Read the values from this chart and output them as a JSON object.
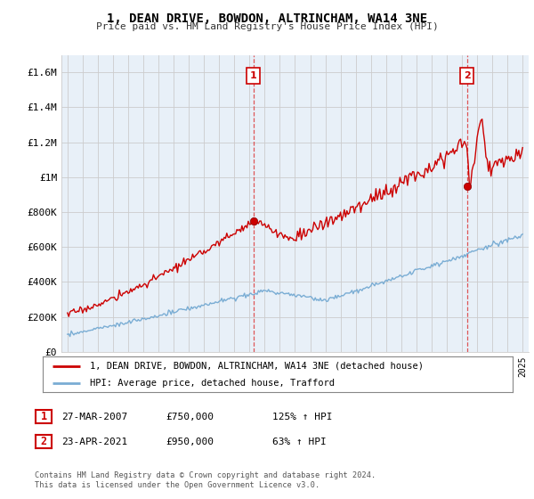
{
  "title": "1, DEAN DRIVE, BOWDON, ALTRINCHAM, WA14 3NE",
  "subtitle": "Price paid vs. HM Land Registry's House Price Index (HPI)",
  "legend_line1": "1, DEAN DRIVE, BOWDON, ALTRINCHAM, WA14 3NE (detached house)",
  "legend_line2": "HPI: Average price, detached house, Trafford",
  "sale1_date": "27-MAR-2007",
  "sale1_price": "£750,000",
  "sale1_hpi": "125% ↑ HPI",
  "sale2_date": "23-APR-2021",
  "sale2_price": "£950,000",
  "sale2_hpi": "63% ↑ HPI",
  "footer": "Contains HM Land Registry data © Crown copyright and database right 2024.\nThis data is licensed under the Open Government Licence v3.0.",
  "red_color": "#cc0000",
  "blue_color": "#7aadd4",
  "vline_color": "#dd4444",
  "grid_color": "#cccccc",
  "background_color": "#ffffff",
  "chart_bg_color": "#e8f0f8",
  "ylim": [
    0,
    1700000
  ],
  "yticks": [
    0,
    200000,
    400000,
    600000,
    800000,
    1000000,
    1200000,
    1400000,
    1600000
  ],
  "ytick_labels": [
    "£0",
    "£200K",
    "£400K",
    "£600K",
    "£800K",
    "£1M",
    "£1.2M",
    "£1.4M",
    "£1.6M"
  ],
  "sale1_year": 2007.25,
  "sale2_year": 2021.33,
  "sale1_price_val": 750000,
  "sale2_price_val": 950000
}
